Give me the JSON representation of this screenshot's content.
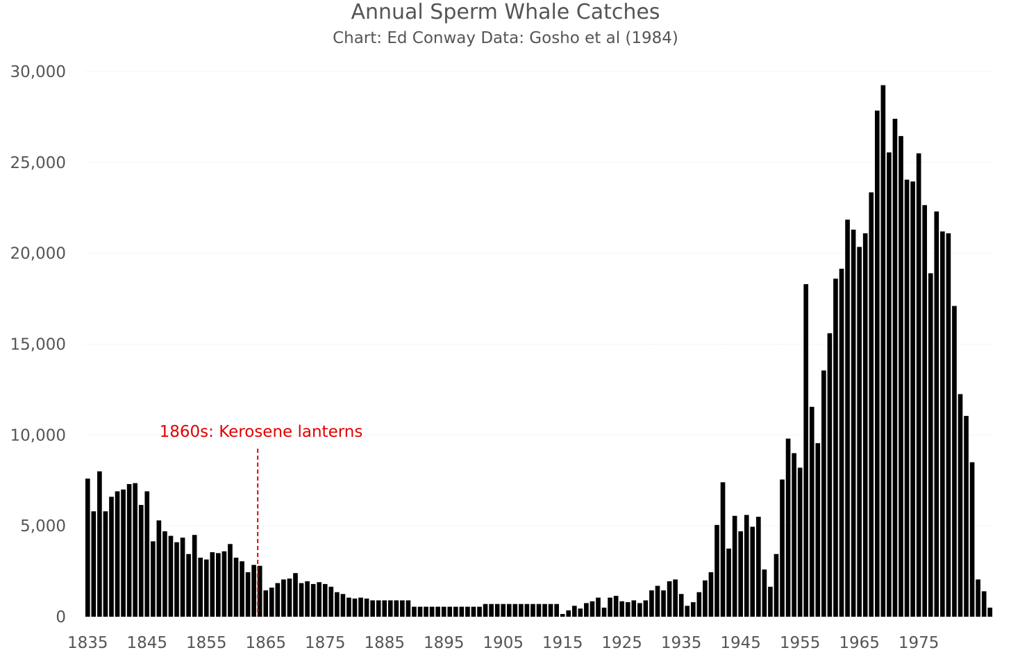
{
  "chart_data": {
    "type": "bar",
    "title": "Annual Sperm Whale Catches",
    "subtitle": "Chart: Ed Conway Data: Gosho et al (1984)",
    "xlabel": "",
    "ylabel": "",
    "ylim": [
      0,
      30000
    ],
    "yticks": [
      0,
      5000,
      10000,
      15000,
      20000,
      25000,
      30000
    ],
    "ytick_labels": [
      "0",
      "5,000",
      "10,000",
      "15,000",
      "20,000",
      "25,000",
      "30,000"
    ],
    "xticks": [
      1835,
      1845,
      1855,
      1865,
      1875,
      1885,
      1895,
      1905,
      1915,
      1925,
      1935,
      1945,
      1955,
      1965,
      1975
    ],
    "xtick_labels": [
      "1835",
      "1845",
      "1855",
      "1865",
      "1875",
      "1885",
      "1895",
      "1905",
      "1915",
      "1925",
      "1935",
      "1945",
      "1955",
      "1965",
      "1975"
    ],
    "grid": true,
    "bar_color": "#000000",
    "x_start": 1835,
    "x_end": 1982,
    "values": [
      7600,
      5800,
      8000,
      5800,
      6600,
      6900,
      7000,
      7300,
      7350,
      6150,
      6900,
      4150,
      5300,
      4700,
      4450,
      4100,
      4350,
      3450,
      4500,
      3250,
      3150,
      3550,
      3500,
      3600,
      4000,
      3250,
      3050,
      2450,
      2850,
      2800,
      1450,
      1600,
      1850,
      2050,
      2100,
      2400,
      1850,
      1950,
      1800,
      1900,
      1800,
      1650,
      1350,
      1250,
      1050,
      1000,
      1050,
      1000,
      900,
      900,
      900,
      900,
      900,
      900,
      900,
      550,
      550,
      550,
      550,
      550,
      550,
      550,
      550,
      550,
      550,
      550,
      550,
      700,
      700,
      700,
      700,
      700,
      700,
      700,
      700,
      700,
      700,
      700,
      700,
      700,
      150,
      350,
      600,
      450,
      750,
      850,
      1050,
      500,
      1050,
      1150,
      850,
      800,
      900,
      750,
      900,
      1450,
      1700,
      1450,
      1950,
      2050,
      1250,
      600,
      800,
      1350,
      2000,
      2450,
      5050,
      7400,
      3750,
      5550,
      4700,
      5600,
      4950,
      5500,
      2600,
      1650,
      3450,
      7550,
      9800,
      9000,
      8200,
      18300,
      11550,
      9550,
      13550,
      15600,
      18600,
      19150,
      21850,
      21300,
      20350,
      21100,
      23350,
      27850,
      29250,
      25550,
      27400,
      26450,
      24050,
      23950,
      25500,
      22650,
      18900,
      22300,
      21200,
      21100,
      17100,
      12250,
      11050,
      8500,
      2050,
      1400,
      500
    ],
    "annotations": [
      {
        "text": "1860s: Kerosene lanterns",
        "x": 1864,
        "color": "#e00000",
        "line_style": "dashed"
      }
    ]
  }
}
